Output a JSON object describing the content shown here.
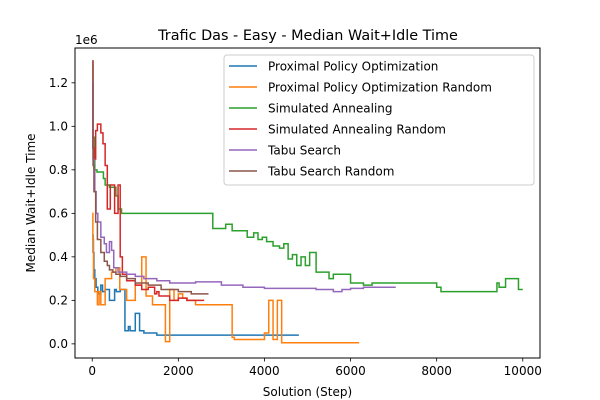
{
  "chart_data": {
    "type": "line",
    "title": "Trafic Das - Easy - Median Wait+Idle Time",
    "xlabel": "Solution (Step)",
    "ylabel": "Median Wait+Idle Time",
    "y_offset_text": "1e6",
    "xlim": [
      -400,
      10400
    ],
    "ylim": [
      -65000,
      1360000
    ],
    "x_ticks": [
      0,
      2000,
      4000,
      6000,
      8000,
      10000
    ],
    "x_tick_labels": [
      "0",
      "2000",
      "4000",
      "6000",
      "8000",
      "10000"
    ],
    "y_ticks": [
      0,
      200000,
      400000,
      600000,
      800000,
      1000000,
      1200000
    ],
    "y_tick_labels": [
      "0.0",
      "0.2",
      "0.4",
      "0.6",
      "0.8",
      "1.0",
      "1.2"
    ],
    "grid": false,
    "legend_position": "upper right",
    "series": [
      {
        "name": "Proximal Policy Optimization",
        "color": "#1f77b4",
        "x": [
          0,
          20,
          20,
          40,
          40,
          60,
          60,
          90,
          90,
          130,
          130,
          200,
          200,
          240,
          240,
          300,
          300,
          400,
          400,
          520,
          520,
          560,
          560,
          650,
          650,
          760,
          760,
          840,
          840,
          880,
          880,
          1000,
          1000,
          1100,
          1100,
          1200,
          1200,
          1500,
          1500,
          4800
        ],
        "y": [
          500000,
          500000,
          420000,
          420000,
          340000,
          340000,
          300000,
          300000,
          260000,
          260000,
          230000,
          230000,
          270000,
          270000,
          240000,
          240000,
          250000,
          250000,
          200000,
          200000,
          250000,
          250000,
          240000,
          240000,
          250000,
          250000,
          60000,
          60000,
          80000,
          80000,
          60000,
          60000,
          140000,
          140000,
          60000,
          60000,
          50000,
          50000,
          40000,
          40000
        ]
      },
      {
        "name": "Proximal Policy Optimization Random",
        "color": "#ff7f0e",
        "x": [
          0,
          15,
          15,
          30,
          30,
          60,
          60,
          120,
          120,
          160,
          160,
          200,
          200,
          300,
          300,
          450,
          450,
          550,
          550,
          640,
          640,
          800,
          800,
          1000,
          1000,
          1150,
          1150,
          1250,
          1250,
          1400,
          1400,
          1700,
          1700,
          1800,
          1800,
          1900,
          1900,
          2000,
          2000,
          2100,
          2100,
          2200,
          2200,
          2400,
          2400,
          3250,
          3250,
          3300,
          3300,
          4000,
          4000,
          4100,
          4100,
          4200,
          4200,
          4300,
          4300,
          4400,
          4400,
          6200
        ],
        "y": [
          600000,
          600000,
          480000,
          480000,
          300000,
          300000,
          240000,
          240000,
          180000,
          180000,
          240000,
          240000,
          180000,
          180000,
          300000,
          300000,
          330000,
          330000,
          350000,
          350000,
          250000,
          250000,
          200000,
          200000,
          270000,
          270000,
          400000,
          400000,
          220000,
          220000,
          180000,
          180000,
          10000,
          10000,
          250000,
          250000,
          200000,
          200000,
          230000,
          230000,
          210000,
          210000,
          200000,
          200000,
          180000,
          180000,
          30000,
          30000,
          20000,
          20000,
          50000,
          50000,
          200000,
          200000,
          20000,
          20000,
          200000,
          200000,
          5000,
          5000
        ]
      },
      {
        "name": "Simulated Annealing",
        "color": "#2ca02c",
        "x": [
          0,
          20,
          20,
          60,
          60,
          110,
          110,
          260,
          260,
          300,
          300,
          400,
          400,
          550,
          550,
          600,
          600,
          680,
          680,
          2800,
          2800,
          3100,
          3100,
          3250,
          3250,
          3600,
          3600,
          3750,
          3750,
          3850,
          3850,
          3950,
          3950,
          4050,
          4050,
          4200,
          4200,
          4350,
          4350,
          4450,
          4450,
          4550,
          4550,
          4650,
          4650,
          4750,
          4750,
          4850,
          4850,
          4950,
          4950,
          5050,
          5050,
          5200,
          5200,
          5500,
          5500,
          5600,
          5600,
          6000,
          6000,
          6300,
          6300,
          6500,
          6500,
          8000,
          8000,
          8100,
          8100,
          9400,
          9400,
          9450,
          9450,
          9600,
          9600,
          9900,
          9900,
          10000
        ],
        "y": [
          900000,
          900000,
          950000,
          950000,
          800000,
          800000,
          790000,
          790000,
          760000,
          760000,
          730000,
          730000,
          720000,
          720000,
          680000,
          680000,
          620000,
          620000,
          600000,
          600000,
          530000,
          530000,
          550000,
          550000,
          520000,
          520000,
          490000,
          490000,
          510000,
          510000,
          480000,
          480000,
          490000,
          490000,
          470000,
          470000,
          450000,
          450000,
          440000,
          440000,
          460000,
          460000,
          390000,
          390000,
          410000,
          410000,
          360000,
          360000,
          400000,
          400000,
          360000,
          360000,
          420000,
          420000,
          330000,
          330000,
          300000,
          300000,
          320000,
          320000,
          280000,
          280000,
          270000,
          270000,
          280000,
          280000,
          260000,
          260000,
          240000,
          240000,
          280000,
          280000,
          260000,
          260000,
          300000,
          300000,
          250000,
          250000
        ]
      },
      {
        "name": "Simulated Annealing Random",
        "color": "#d62728",
        "x": [
          0,
          15,
          15,
          40,
          40,
          80,
          80,
          120,
          120,
          200,
          200,
          250,
          250,
          300,
          300,
          350,
          350,
          420,
          420,
          520,
          520,
          600,
          600,
          650,
          650,
          700,
          700,
          800,
          800,
          1000,
          1000,
          1150,
          1150,
          1300,
          1300,
          1450,
          1450,
          1500,
          1500,
          1550,
          1550,
          1800,
          1800,
          2000,
          2000,
          2200,
          2200,
          2600
        ],
        "y": [
          1300000,
          1300000,
          900000,
          900000,
          850000,
          850000,
          980000,
          980000,
          1010000,
          1010000,
          970000,
          970000,
          920000,
          920000,
          820000,
          820000,
          620000,
          620000,
          730000,
          730000,
          600000,
          600000,
          730000,
          730000,
          400000,
          400000,
          320000,
          320000,
          290000,
          290000,
          270000,
          270000,
          250000,
          250000,
          260000,
          260000,
          230000,
          230000,
          240000,
          240000,
          220000,
          220000,
          200000,
          200000,
          210000,
          210000,
          200000,
          200000
        ]
      },
      {
        "name": "Tabu Search",
        "color": "#9467bd",
        "x": [
          0,
          20,
          20,
          40,
          40,
          60,
          60,
          90,
          90,
          130,
          130,
          200,
          200,
          280,
          280,
          330,
          330,
          400,
          400,
          450,
          450,
          500,
          500,
          600,
          600,
          800,
          800,
          1000,
          1000,
          1200,
          1200,
          1500,
          1500,
          1800,
          1800,
          2400,
          2400,
          3000,
          3000,
          3500,
          3500,
          4000,
          4000,
          5200,
          5200,
          5600,
          5600,
          5800,
          5800,
          6000,
          6000,
          6300,
          6300,
          7050
        ],
        "y": [
          1200000,
          1200000,
          850000,
          850000,
          800000,
          800000,
          700000,
          700000,
          600000,
          600000,
          560000,
          560000,
          490000,
          490000,
          460000,
          460000,
          420000,
          420000,
          470000,
          470000,
          430000,
          430000,
          350000,
          350000,
          330000,
          330000,
          320000,
          320000,
          310000,
          310000,
          300000,
          300000,
          290000,
          290000,
          280000,
          280000,
          285000,
          285000,
          270000,
          270000,
          260000,
          260000,
          255000,
          255000,
          250000,
          250000,
          240000,
          240000,
          250000,
          250000,
          255000,
          255000,
          260000,
          260000
        ]
      },
      {
        "name": "Tabu Search Random",
        "color": "#8c564b",
        "x": [
          0,
          20,
          20,
          40,
          40,
          80,
          80,
          120,
          120,
          200,
          200,
          280,
          280,
          350,
          350,
          400,
          400,
          480,
          480,
          550,
          550,
          650,
          650,
          800,
          800,
          1000,
          1000,
          1300,
          1300,
          1600,
          1600,
          2000,
          2000,
          2300,
          2300,
          2700
        ],
        "y": [
          1300000,
          1300000,
          820000,
          820000,
          700000,
          700000,
          560000,
          560000,
          480000,
          480000,
          420000,
          420000,
          380000,
          380000,
          360000,
          360000,
          340000,
          340000,
          330000,
          330000,
          320000,
          320000,
          310000,
          310000,
          300000,
          300000,
          280000,
          280000,
          270000,
          270000,
          250000,
          250000,
          240000,
          240000,
          230000,
          230000
        ]
      }
    ]
  }
}
